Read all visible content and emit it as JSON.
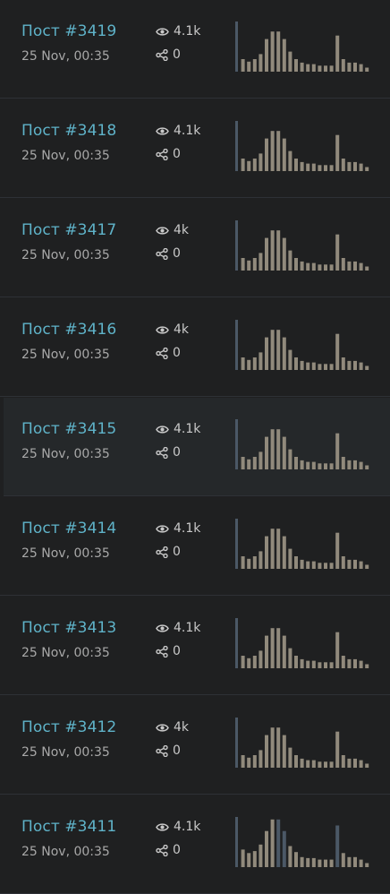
{
  "colors": {
    "background": "#1f2021",
    "row_highlight": "#25282a",
    "divider": "#2e3136",
    "title": "#5fb3c9",
    "date": "#a8a8a8",
    "stat_text": "#c9c9c9",
    "bar": "#918a7c",
    "bar_accent": "#4b5866"
  },
  "icons": {
    "views": "eye-icon",
    "shares": "share-icon"
  },
  "posts": [
    {
      "title": "Пост #3419",
      "date": "25 Nov, 00:35",
      "views": "4.1k",
      "shares": "0"
    },
    {
      "title": "Пост #3418",
      "date": "25 Nov, 00:35",
      "views": "4.1k",
      "shares": "0"
    },
    {
      "title": "Пост #3417",
      "date": "25 Nov, 00:35",
      "views": "4k",
      "shares": "0"
    },
    {
      "title": "Пост #3416",
      "date": "25 Nov, 00:35",
      "views": "4k",
      "shares": "0"
    },
    {
      "title": "Пост #3415",
      "date": "25 Nov, 00:35",
      "views": "4.1k",
      "shares": "0",
      "highlighted": true
    },
    {
      "title": "Пост #3414",
      "date": "25 Nov, 00:35",
      "views": "4.1k",
      "shares": "0"
    },
    {
      "title": "Пост #3413",
      "date": "25 Nov, 00:35",
      "views": "4.1k",
      "shares": "0"
    },
    {
      "title": "Пост #3412",
      "date": "25 Nov, 00:35",
      "views": "4k",
      "shares": "0"
    },
    {
      "title": "Пост #3411",
      "date": "25 Nov, 00:35",
      "views": "4.1k",
      "shares": "0"
    }
  ],
  "sparkline": {
    "values": [
      100,
      25,
      20,
      25,
      35,
      65,
      80,
      80,
      65,
      40,
      25,
      18,
      15,
      15,
      12,
      12,
      12,
      72,
      25,
      18,
      18,
      15,
      8
    ],
    "accent_indices": [
      0
    ]
  },
  "sparkline_last": {
    "values": [
      100,
      35,
      28,
      32,
      45,
      72,
      95,
      95,
      72,
      42,
      30,
      20,
      18,
      18,
      15,
      15,
      15,
      83,
      28,
      20,
      20,
      15,
      8
    ],
    "accent_indices": [
      0,
      7,
      8,
      17
    ]
  }
}
